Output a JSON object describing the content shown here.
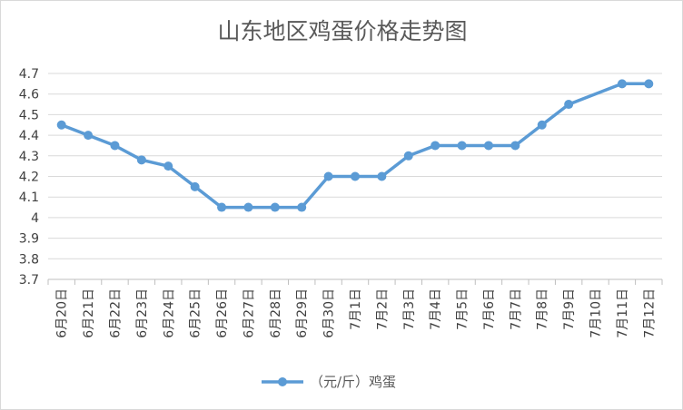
{
  "chart_data": {
    "type": "line",
    "title": "山东地区鸡蛋价格走势图",
    "xlabel": "",
    "ylabel": "",
    "ylim": [
      3.7,
      4.7
    ],
    "yticks": [
      "3.7",
      "3.8",
      "3.9",
      "4",
      "4.1",
      "4.2",
      "4.3",
      "4.4",
      "4.5",
      "4.6",
      "4.7"
    ],
    "categories": [
      "6月20日",
      "6月21日",
      "6月22日",
      "6月23日",
      "6月24日",
      "6月25日",
      "6月26日",
      "6月27日",
      "6月28日",
      "6月29日",
      "6月30日",
      "7月1日",
      "7月2日",
      "7月3日",
      "7月4日",
      "7月5日",
      "7月6日",
      "7月7日",
      "7月8日",
      "7月9日",
      "7月10日",
      "7月11日",
      "7月12日"
    ],
    "series": [
      {
        "name": "（元/斤）鸡蛋",
        "values": [
          4.45,
          4.4,
          4.35,
          4.28,
          4.25,
          4.15,
          4.05,
          4.05,
          4.05,
          4.05,
          4.2,
          4.2,
          4.2,
          4.3,
          4.35,
          4.35,
          4.35,
          4.35,
          4.45,
          4.55,
          null,
          4.65,
          4.65
        ],
        "color": "#5b9bd5"
      }
    ],
    "grid": true,
    "legend_position": "bottom"
  }
}
